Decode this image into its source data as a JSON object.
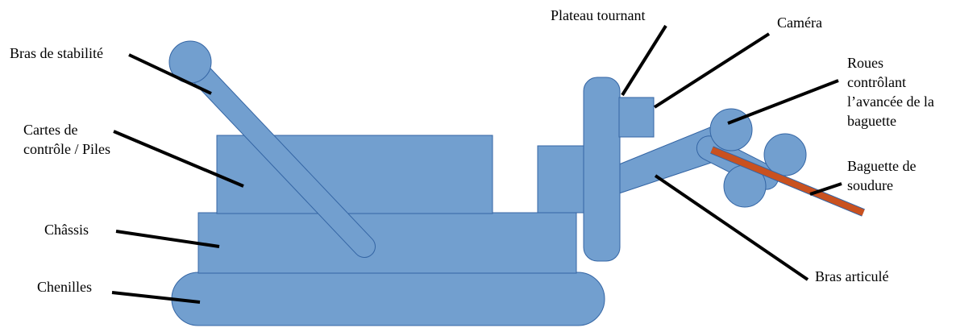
{
  "labels": {
    "bras_stabilite": "Bras de stabilité",
    "cartes_controle_line1": "Cartes de",
    "cartes_controle_line2": "contrôle / Piles",
    "chassis": "Châssis",
    "chenilles": "Chenilles",
    "plateau_tournant": "Plateau tournant",
    "camera": "Caméra",
    "roues_line1": "Roues",
    "roues_line2": "contrôlant",
    "roues_line3": "l’avancée de la",
    "roues_line4": "baguette",
    "baguette_line1": "Baguette de",
    "baguette_line2": "soudure",
    "bras_articule": "Bras articulé"
  },
  "colors": {
    "part_fill": "#729fcf",
    "part_stroke": "#3465a4",
    "rod_fill": "#c9511f",
    "leader_line": "#000000",
    "text": "#000000"
  }
}
